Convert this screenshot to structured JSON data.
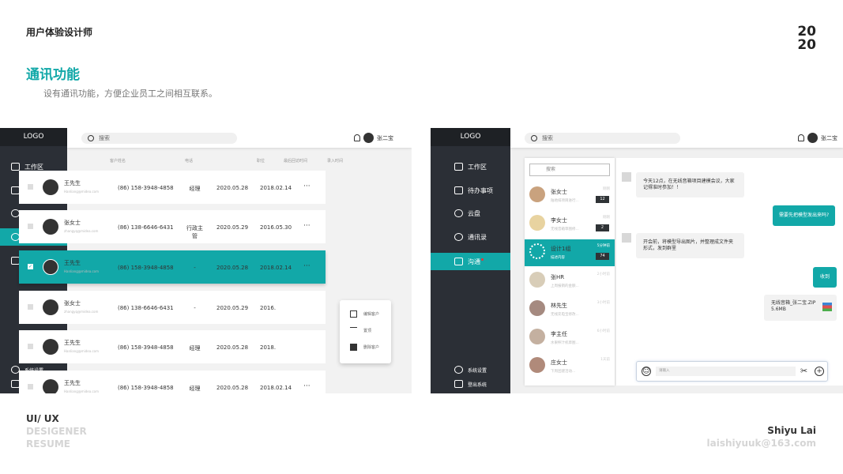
{
  "header": {
    "left": "用户体验设计师",
    "year_top": "20",
    "year_bottom": "20",
    "title": "通讯功能",
    "subtitle": "设有通讯功能，方便企业员工之间相互联系。"
  },
  "footer": {
    "l1": "UI/ UX",
    "l2": "DESIGENER",
    "l3": "RESUME",
    "name": "Shiyu Lai",
    "email": "laishiyuuk@163.com"
  },
  "app": {
    "logo": "LOGO",
    "search": "搜索",
    "user": "张二宝",
    "nav": [
      "工作区",
      "待办事项",
      "云盘",
      "通讯录",
      "沟通"
    ],
    "settings": "系统设置",
    "logout": "登出系统",
    "accent": "#12a8a8"
  },
  "contacts": {
    "columns": [
      "客户姓名",
      "电话",
      "职位",
      "最后回访时间",
      "录入时间"
    ],
    "rows": [
      {
        "name": "王先生",
        "email": "Hanliang@midea.com",
        "phone": "(86) 158-3948-4858",
        "pos": "经理",
        "last": "2020.05.28",
        "created": "2018.02.14"
      },
      {
        "name": "张女士",
        "email": "zhangyq@midea.com",
        "phone": "(86) 138-6646-6431",
        "pos": "行政主管",
        "last": "2020.05.29",
        "created": "2016.05.30"
      },
      {
        "name": "王先生",
        "email": "Hanliang@midea.com",
        "phone": "(86) 158-3948-4858",
        "pos": "-",
        "last": "2020.05.28",
        "created": "2018.02.14"
      },
      {
        "name": "张女士",
        "email": "zhangyq@midea.com",
        "phone": "(86) 138-6646-6431",
        "pos": "-",
        "last": "2020.05.29",
        "created": "2016."
      },
      {
        "name": "王先生",
        "email": "Hanliang@midea.com",
        "phone": "(86) 158-3948-4858",
        "pos": "经理",
        "last": "2020.05.28",
        "created": "2018."
      },
      {
        "name": "王先生",
        "email": "Hanliang@midea.com",
        "phone": "(86) 158-3948-4858",
        "pos": "经理",
        "last": "2020.05.28",
        "created": "2018.02.14"
      }
    ],
    "more": "···",
    "menu": [
      "编辑客户",
      "置顶",
      "删除客户"
    ]
  },
  "chat": {
    "search": "搜索",
    "list": [
      {
        "name": "张女士",
        "preview": "陆地排项目进行...",
        "time": "刚刚",
        "badge": "12"
      },
      {
        "name": "李女士",
        "preview": "无线音箱草图修...",
        "time": "刚刚",
        "badge": "2"
      },
      {
        "name": "设计1组",
        "preview": "描述内容",
        "time": "5分钟前",
        "badge": "74"
      },
      {
        "name": "张HR",
        "preview": "上周报销的金额...",
        "time": "2小时前"
      },
      {
        "name": "林先生",
        "preview": "无线充电宝修改...",
        "time": "3小时前"
      },
      {
        "name": "李主任",
        "preview": "水果榨汁机草图...",
        "time": "6小时前"
      },
      {
        "name": "庄女士",
        "preview": "下周团建活动...",
        "time": "1天前"
      }
    ],
    "messages": [
      "今天12点，在无线音箱项目建模会议，大家记得准时参加！！",
      "需要先把模型发出来吗?",
      "开会前，将模型导出图片，并整理成文件夹形式，发到群里",
      "收到"
    ],
    "file_name": "无线音箱_张二宝.ZIP",
    "file_size": "5.6MB",
    "input_placeholder": "请输入"
  }
}
